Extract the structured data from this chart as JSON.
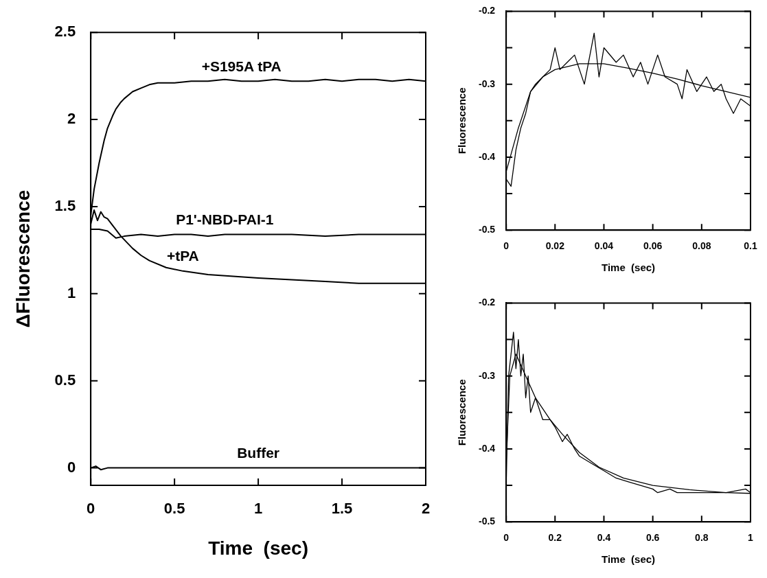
{
  "chart_data": [
    {
      "type": "line",
      "xlabel": "Time  (sec)",
      "ylabel": "ΔFluorescence",
      "xlim": [
        0,
        2
      ],
      "ylim": [
        -0.1,
        2.5
      ],
      "xticks": [
        0,
        0.5,
        1,
        1.5,
        2
      ],
      "yticks": [
        0,
        0.5,
        1,
        1.5,
        2,
        2.5
      ],
      "grid": false,
      "legend": false,
      "marker": "none",
      "line_style": "solid",
      "series": [
        {
          "name": "+S195A tPA",
          "color": "#000000",
          "x": [
            0,
            0.02,
            0.05,
            0.08,
            0.1,
            0.13,
            0.15,
            0.18,
            0.2,
            0.25,
            0.3,
            0.35,
            0.4,
            0.5,
            0.6,
            0.7,
            0.8,
            0.9,
            1,
            1.1,
            1.2,
            1.3,
            1.4,
            1.5,
            1.6,
            1.7,
            1.8,
            1.9,
            2
          ],
          "values": [
            1.45,
            1.6,
            1.75,
            1.88,
            1.95,
            2.02,
            2.06,
            2.1,
            2.12,
            2.16,
            2.18,
            2.2,
            2.21,
            2.21,
            2.22,
            2.22,
            2.23,
            2.22,
            2.22,
            2.23,
            2.22,
            2.22,
            2.23,
            2.22,
            2.23,
            2.23,
            2.22,
            2.23,
            2.22
          ]
        },
        {
          "name": "P1'-NBD-PAI-1",
          "color": "#000000",
          "x": [
            0,
            0.05,
            0.1,
            0.15,
            0.2,
            0.3,
            0.4,
            0.5,
            0.6,
            0.7,
            0.8,
            0.9,
            1,
            1.2,
            1.4,
            1.6,
            1.8,
            2
          ],
          "values": [
            1.37,
            1.37,
            1.36,
            1.32,
            1.33,
            1.34,
            1.33,
            1.34,
            1.34,
            1.33,
            1.34,
            1.34,
            1.34,
            1.34,
            1.33,
            1.34,
            1.34,
            1.34
          ]
        },
        {
          "name": "+tPA",
          "color": "#000000",
          "x": [
            0,
            0.02,
            0.04,
            0.06,
            0.08,
            0.1,
            0.14,
            0.18,
            0.25,
            0.3,
            0.35,
            0.45,
            0.55,
            0.7,
            0.85,
            1,
            1.2,
            1.4,
            1.6,
            1.8,
            2
          ],
          "values": [
            1.4,
            1.48,
            1.42,
            1.47,
            1.44,
            1.43,
            1.38,
            1.33,
            1.26,
            1.22,
            1.19,
            1.15,
            1.13,
            1.11,
            1.1,
            1.09,
            1.08,
            1.07,
            1.06,
            1.06,
            1.06
          ]
        },
        {
          "name": "Buffer",
          "color": "#000000",
          "x": [
            0,
            0.03,
            0.06,
            0.1,
            0.2,
            0.4,
            0.6,
            0.8,
            1,
            1.2,
            1.4,
            1.6,
            1.8,
            2
          ],
          "values": [
            0,
            0.01,
            -0.01,
            0,
            0,
            0,
            0,
            0,
            0,
            0,
            0,
            0,
            0,
            0
          ]
        }
      ]
    },
    {
      "type": "line",
      "xlabel": "Time  (sec)",
      "ylabel": "Fluorescence",
      "xlim": [
        0,
        0.1
      ],
      "ylim": [
        -0.5,
        -0.2
      ],
      "xticks": [
        0,
        0.02,
        0.04,
        0.06,
        0.08,
        0.1
      ],
      "yticks": [
        -0.5,
        {
          "value": -0.45,
          "label": null
        },
        -0.4,
        {
          "value": -0.35,
          "label": null
        },
        -0.3,
        {
          "value": -0.25,
          "label": null
        },
        -0.2
      ],
      "grid": false,
      "legend": false,
      "marker": "none",
      "line_style": "solid",
      "series": [
        {
          "color": "#000000",
          "x": [
            0,
            0.002,
            0.004,
            0.006,
            0.008,
            0.01,
            0.012,
            0.015,
            0.018,
            0.02,
            0.022,
            0.025,
            0.028,
            0.032,
            0.036,
            0.038,
            0.04,
            0.045,
            0.048,
            0.052,
            0.055,
            0.058,
            0.062,
            0.065,
            0.07,
            0.072,
            0.074,
            0.078,
            0.082,
            0.085,
            0.088,
            0.09,
            0.093,
            0.096,
            0.1
          ],
          "values": [
            -0.43,
            -0.44,
            -0.39,
            -0.36,
            -0.34,
            -0.31,
            -0.3,
            -0.29,
            -0.28,
            -0.25,
            -0.28,
            -0.27,
            -0.26,
            -0.3,
            -0.23,
            -0.29,
            -0.25,
            -0.27,
            -0.26,
            -0.29,
            -0.27,
            -0.3,
            -0.26,
            -0.29,
            -0.3,
            -0.32,
            -0.28,
            -0.31,
            -0.29,
            -0.31,
            -0.3,
            -0.32,
            -0.34,
            -0.32,
            -0.33
          ]
        },
        {
          "color": "#000000",
          "x": [
            0,
            0.005,
            0.01,
            0.015,
            0.02,
            0.03,
            0.04,
            0.05,
            0.06,
            0.07,
            0.08,
            0.09,
            0.1
          ],
          "values": [
            -0.42,
            -0.36,
            -0.31,
            -0.29,
            -0.28,
            -0.272,
            -0.272,
            -0.278,
            -0.285,
            -0.293,
            -0.302,
            -0.31,
            -0.318
          ]
        }
      ]
    },
    {
      "type": "line",
      "xlabel": "Time  (sec)",
      "ylabel": "Fluorescence",
      "xlim": [
        0,
        1
      ],
      "ylim": [
        -0.5,
        -0.2
      ],
      "xticks": [
        0,
        0.2,
        0.4,
        0.6,
        0.8,
        1
      ],
      "yticks": [
        -0.5,
        {
          "value": -0.45,
          "label": null
        },
        -0.4,
        {
          "value": -0.35,
          "label": null
        },
        -0.3,
        {
          "value": -0.25,
          "label": null
        },
        -0.2
      ],
      "grid": false,
      "legend": false,
      "marker": "none",
      "line_style": "solid",
      "series": [
        {
          "color": "#000000",
          "x": [
            0,
            0.01,
            0.02,
            0.03,
            0.04,
            0.05,
            0.06,
            0.07,
            0.08,
            0.09,
            0.1,
            0.12,
            0.15,
            0.18,
            0.2,
            0.23,
            0.25,
            0.28,
            0.3,
            0.35,
            0.4,
            0.45,
            0.5,
            0.55,
            0.6,
            0.62,
            0.67,
            0.7,
            0.8,
            0.9,
            0.98,
            1
          ],
          "values": [
            -0.45,
            -0.3,
            -0.27,
            -0.24,
            -0.29,
            -0.25,
            -0.3,
            -0.27,
            -0.33,
            -0.3,
            -0.35,
            -0.33,
            -0.36,
            -0.36,
            -0.37,
            -0.39,
            -0.38,
            -0.4,
            -0.41,
            -0.42,
            -0.43,
            -0.44,
            -0.445,
            -0.45,
            -0.455,
            -0.46,
            -0.455,
            -0.46,
            -0.46,
            -0.46,
            -0.455,
            -0.46
          ]
        },
        {
          "color": "#000000",
          "x": [
            0,
            0.015,
            0.04,
            0.08,
            0.12,
            0.18,
            0.23,
            0.3,
            0.38,
            0.48,
            0.6,
            0.75,
            0.9,
            1
          ],
          "values": [
            -0.42,
            -0.3,
            -0.27,
            -0.3,
            -0.33,
            -0.36,
            -0.38,
            -0.405,
            -0.425,
            -0.44,
            -0.45,
            -0.456,
            -0.46,
            -0.461
          ]
        }
      ]
    }
  ]
}
